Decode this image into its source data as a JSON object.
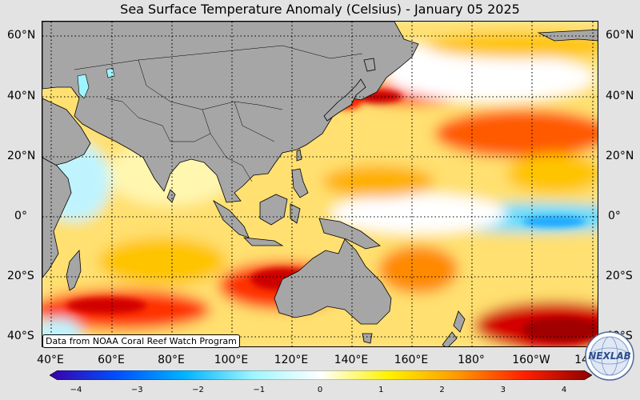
{
  "title": "Sea Surface Temperature Anomaly (Celsius) - January 05 2025",
  "lat_labels": [
    "60°N",
    "40°N",
    "20°N",
    "0°",
    "20°S",
    "40°S"
  ],
  "lon_labels": [
    "40°E",
    "60°E",
    "80°E",
    "100°E",
    "120°E",
    "140°E",
    "160°E",
    "180°",
    "160°W",
    "14"
  ],
  "colorbar": {
    "ticks": [
      "−4",
      "−3",
      "−2",
      "−1",
      "0",
      "1",
      "2",
      "3",
      "4"
    ],
    "colors": [
      "#3a00a8",
      "#0050ff",
      "#00b4ff",
      "#9ff5ff",
      "#ffffff",
      "#fff200",
      "#ff9a00",
      "#ff2000",
      "#8c0000"
    ]
  },
  "credit": "Data from NOAA Coral Reef Watch Program",
  "logo_text": "NEXLAB",
  "colors": {
    "land": "#a6a6a6",
    "background": "#e3e3e3"
  }
}
